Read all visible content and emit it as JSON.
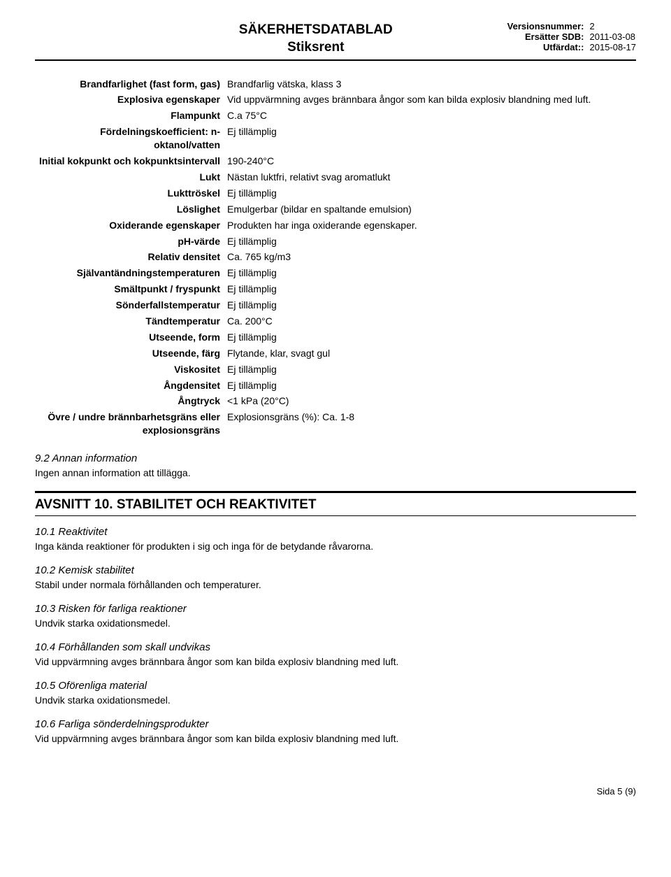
{
  "header": {
    "title": "SÄKERHETSDATABLAD",
    "subtitle": "Stiksrent",
    "version_label": "Versionsnummer:",
    "version_value": "2",
    "replaces_label": "Ersätter SDB:",
    "replaces_value": "2011-03-08",
    "issued_label": "Utfärdat::",
    "issued_value": "2015-08-17"
  },
  "properties": [
    {
      "label": "Brandfarlighet (fast form, gas)",
      "value": "Brandfarlig vätska, klass 3"
    },
    {
      "label": "Explosiva egenskaper",
      "value": "Vid uppvärmning avges brännbara ångor som kan bilda explosiv blandning med luft."
    },
    {
      "label": "Flampunkt",
      "value": "C.a 75°C"
    },
    {
      "label": "Fördelningskoefficient: n-oktanol/vatten",
      "value": "Ej tillämplig"
    },
    {
      "label": "Initial kokpunkt och kokpunktsintervall",
      "value": "190-240°C"
    },
    {
      "label": "Lukt",
      "value": "Nästan luktfri, relativt svag aromatlukt"
    },
    {
      "label": "Lukttröskel",
      "value": "Ej tillämplig"
    },
    {
      "label": "Löslighet",
      "value": "Emulgerbar (bildar en spaltande emulsion)"
    },
    {
      "label": "Oxiderande egenskaper",
      "value": "Produkten har inga oxiderande egenskaper."
    },
    {
      "label": "pH-värde",
      "value": "Ej tillämplig"
    },
    {
      "label": "Relativ densitet",
      "value": "Ca. 765 kg/m3"
    },
    {
      "label": "Självantändningstemperaturen",
      "value": "Ej tillämplig"
    },
    {
      "label": "Smältpunkt / fryspunkt",
      "value": "Ej tillämplig"
    },
    {
      "label": "Sönderfallstemperatur",
      "value": "Ej tillämplig"
    },
    {
      "label": "Tändtemperatur",
      "value": "Ca. 200°C"
    },
    {
      "label": "Utseende, form",
      "value": "Ej tillämplig"
    },
    {
      "label": "Utseende, färg",
      "value": "Flytande, klar, svagt gul"
    },
    {
      "label": "Viskositet",
      "value": "Ej tillämplig"
    },
    {
      "label": "Ångdensitet",
      "value": "Ej tillämplig"
    },
    {
      "label": "Ångtryck",
      "value": "<1 kPa (20°C)"
    },
    {
      "label": "Övre / undre brännbarhetsgräns eller explosionsgräns",
      "value": "Explosionsgräns (%): Ca. 1-8"
    }
  ],
  "s92": {
    "heading": "9.2 Annan information",
    "text": "Ingen annan information att tillägga."
  },
  "section10": {
    "title": "AVSNITT 10. STABILITET OCH REAKTIVITET",
    "sub": [
      {
        "heading": "10.1 Reaktivitet",
        "text": "Inga kända reaktioner för produkten i sig och inga för de betydande råvarorna."
      },
      {
        "heading": "10.2 Kemisk stabilitet",
        "text": "Stabil under normala förhållanden och temperaturer."
      },
      {
        "heading": "10.3 Risken för farliga reaktioner",
        "text": "Undvik starka oxidationsmedel."
      },
      {
        "heading": "10.4 Förhållanden som skall undvikas",
        "text": "Vid uppvärmning avges brännbara ångor som kan bilda explosiv blandning med luft."
      },
      {
        "heading": "10.5 Oförenliga material",
        "text": "Undvik starka oxidationsmedel."
      },
      {
        "heading": "10.6 Farliga sönderdelningsprodukter",
        "text": "Vid uppvärmning avges brännbara ångor som kan bilda explosiv blandning med luft."
      }
    ]
  },
  "footer": "Sida 5 (9)"
}
